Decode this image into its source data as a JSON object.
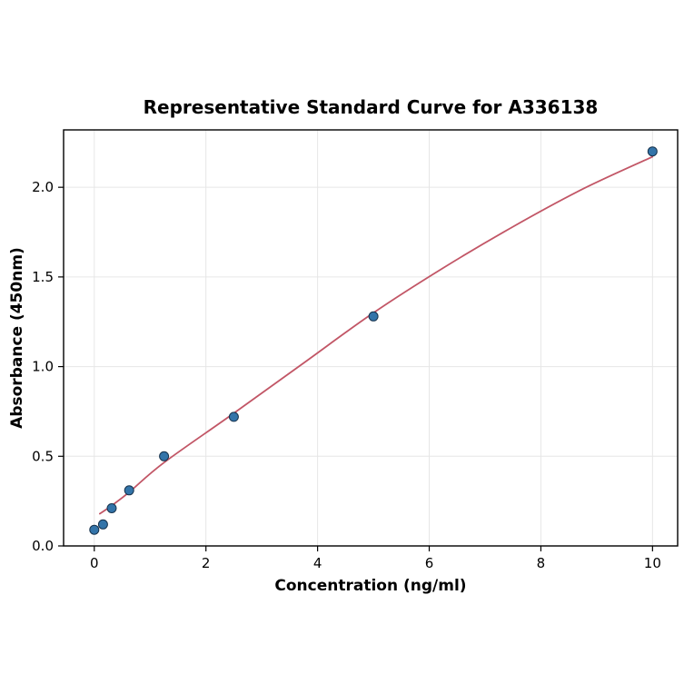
{
  "figure": {
    "background": "#ffffff",
    "plot_background": "#ffffff",
    "border_color": "#000000",
    "grid_color": "#e6e6e6"
  },
  "chart_data": {
    "type": "scatter",
    "title": "Representative Standard Curve for A336138",
    "xlabel": "Concentration (ng/ml)",
    "ylabel": "Absorbance (450nm)",
    "xlim": [
      -0.55,
      10.45
    ],
    "ylim": [
      0,
      2.32
    ],
    "grid": true,
    "legend_position": "none",
    "x_ticks": [
      {
        "value": 0,
        "label": "0"
      },
      {
        "value": 2,
        "label": "2"
      },
      {
        "value": 4,
        "label": "4"
      },
      {
        "value": 6,
        "label": "6"
      },
      {
        "value": 8,
        "label": "8"
      },
      {
        "value": 10,
        "label": "10"
      }
    ],
    "y_ticks": [
      {
        "value": 0.0,
        "label": "0.0"
      },
      {
        "value": 0.5,
        "label": "0.5"
      },
      {
        "value": 1.0,
        "label": "1.0"
      },
      {
        "value": 1.5,
        "label": "1.5"
      },
      {
        "value": 2.0,
        "label": "2.0"
      }
    ],
    "series": [
      {
        "name": "standard-points",
        "type": "scatter",
        "marker_color": "#3374a9",
        "marker_edge_color": "#17334d",
        "marker_radius": 5,
        "points": [
          [
            0,
            0.09
          ],
          [
            0.156,
            0.12
          ],
          [
            0.3125,
            0.21
          ],
          [
            0.625,
            0.31
          ],
          [
            1.25,
            0.5
          ],
          [
            2.5,
            0.72
          ],
          [
            5,
            1.28
          ],
          [
            10,
            2.2
          ]
        ]
      },
      {
        "name": "fit-curve",
        "type": "line",
        "line_color": "#c25666",
        "line_width": 1.8,
        "points": [
          [
            0.1,
            0.18
          ],
          [
            0.3125,
            0.225
          ],
          [
            0.625,
            0.3
          ],
          [
            1.25,
            0.465
          ],
          [
            2.5,
            0.74
          ],
          [
            3.75,
            1.02
          ],
          [
            5,
            1.3
          ],
          [
            6.25,
            1.55
          ],
          [
            7.5,
            1.78
          ],
          [
            8.75,
            1.99
          ],
          [
            10,
            2.17
          ]
        ]
      }
    ]
  }
}
